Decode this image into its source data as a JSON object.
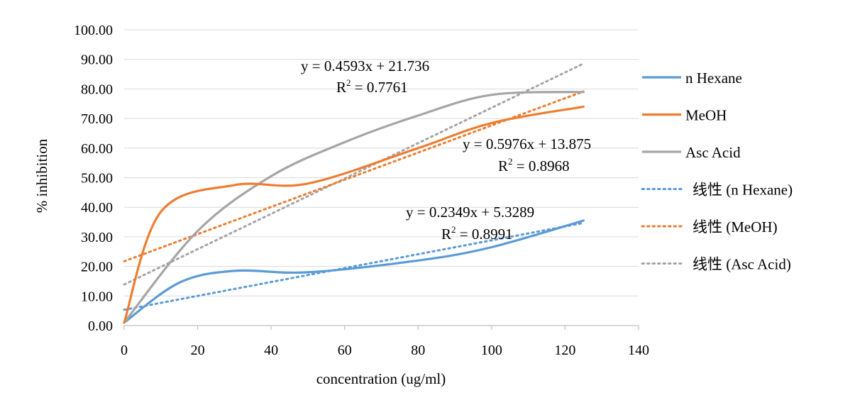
{
  "chart_data": {
    "type": "line",
    "xlabel": "concentration (ug/ml)",
    "ylabel": "% inhibition",
    "xlim": [
      0,
      140
    ],
    "ylim": [
      0,
      100
    ],
    "x_ticks": [
      0,
      20,
      40,
      60,
      80,
      100,
      120,
      140
    ],
    "y_ticks": [
      "0.00",
      "10.00",
      "20.00",
      "30.00",
      "40.00",
      "50.00",
      "60.00",
      "70.00",
      "80.00",
      "90.00",
      "100.00"
    ],
    "grid": "horizontal",
    "legend_position": "right",
    "series": [
      {
        "name": "n Hexane",
        "color": "#5B9BD5",
        "style": "solid",
        "points": [
          [
            0,
            1
          ],
          [
            15,
            14.5
          ],
          [
            30,
            18.5
          ],
          [
            50,
            18
          ],
          [
            80,
            22
          ],
          [
            100,
            26.5
          ],
          [
            125,
            35.5
          ]
        ]
      },
      {
        "name": "MeOH",
        "color": "#ED7D31",
        "style": "solid",
        "points": [
          [
            0,
            1
          ],
          [
            10,
            38.5
          ],
          [
            30,
            47.5
          ],
          [
            50,
            48
          ],
          [
            80,
            60
          ],
          [
            100,
            68.5
          ],
          [
            125,
            74
          ]
        ]
      },
      {
        "name": "Asc Acid",
        "color": "#A5A5A5",
        "style": "solid",
        "points": [
          [
            0,
            1
          ],
          [
            20,
            32
          ],
          [
            40,
            50.5
          ],
          [
            60,
            62
          ],
          [
            80,
            71
          ],
          [
            100,
            78
          ],
          [
            125,
            79
          ]
        ]
      },
      {
        "name": "线性 (n Hexane)",
        "color": "#5B9BD5",
        "style": "dotted",
        "slope": 0.2349,
        "intercept": 5.3289,
        "range": [
          0,
          125
        ]
      },
      {
        "name": "线性 (MeOH)",
        "color": "#ED7D31",
        "style": "dotted",
        "slope": 0.4593,
        "intercept": 21.736,
        "range": [
          0,
          125
        ]
      },
      {
        "name": "线性 (Asc Acid)",
        "color": "#A5A5A5",
        "style": "dotted",
        "slope": 0.5976,
        "intercept": 13.875,
        "range": [
          0,
          125
        ]
      }
    ],
    "annotations": [
      {
        "eq": "y = 0.4593x + 21.736",
        "r2_label": "R",
        "r2_value": " = 0.7761"
      },
      {
        "eq": "y = 0.5976x + 13.875",
        "r2_label": "R",
        "r2_value": " = 0.8968"
      },
      {
        "eq": "y = 0.2349x + 5.3289",
        "r2_label": "R",
        "r2_value": " = 0.8991"
      }
    ]
  }
}
